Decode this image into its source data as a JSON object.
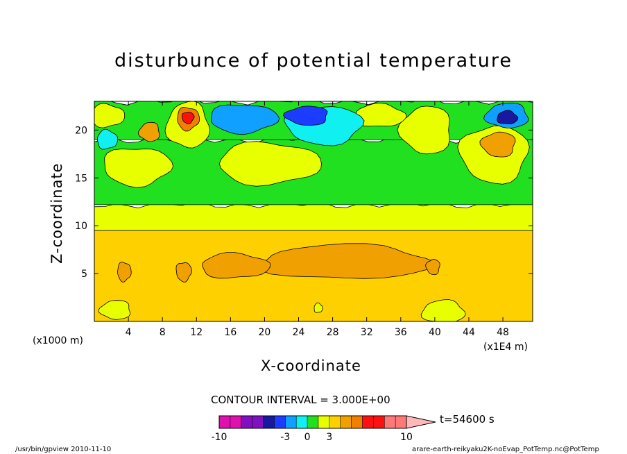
{
  "chart_data": {
    "type": "heatmap",
    "title": "disturbunce of potential temperature",
    "xlabel": "X-coordinate",
    "ylabel": "Z-coordinate",
    "x_unit": "(x1000 m)",
    "x_multiplier": "(x1E4 m)",
    "xlim": [
      0,
      51.5
    ],
    "ylim": [
      0,
      23
    ],
    "x_ticks": [
      4,
      8,
      12,
      16,
      20,
      24,
      28,
      32,
      36,
      40,
      44,
      48
    ],
    "y_ticks": [
      5,
      10,
      15,
      20
    ],
    "contour_interval_text": "CONTOUR INTERVAL = 3.000E+00",
    "time_label": "t=54600 s",
    "colorbar": {
      "colors": [
        "#e010b0",
        "#e010b0",
        "#8010c0",
        "#8010c0",
        "#1818a0",
        "#1c3cff",
        "#10a0ff",
        "#10f0f0",
        "#20e020",
        "#e8ff00",
        "#ffd000",
        "#f0a000",
        "#f08000",
        "#ff1010",
        "#ff1010",
        "#ff7878",
        "#ff7878",
        "#ffb8b8"
      ],
      "tick_labels": [
        "-10",
        "-3",
        "0",
        "3",
        "10"
      ]
    },
    "layers": [
      {
        "z_from": 0,
        "z_to": 9.5,
        "color": "#ffd000"
      },
      {
        "z_from": 9.5,
        "z_to": 12.2,
        "color": "#e8ff00"
      },
      {
        "z_from": 12.2,
        "z_to": 19,
        "color": "#20e020"
      },
      {
        "z_from": 19,
        "z_to": 23,
        "color": "#20e020"
      }
    ],
    "blobs": [
      {
        "x": 29.5,
        "z": 6.2,
        "rx": 10,
        "rz": 1.8,
        "color": "#f0a000"
      },
      {
        "x": 16.5,
        "z": 5.8,
        "rx": 4,
        "rz": 1.3,
        "color": "#f0a000"
      },
      {
        "x": 3.5,
        "z": 5.2,
        "rx": 0.8,
        "rz": 1.0,
        "color": "#f0a000"
      },
      {
        "x": 10.5,
        "z": 5.2,
        "rx": 0.9,
        "rz": 1.0,
        "color": "#f0a000"
      },
      {
        "x": 39.8,
        "z": 5.7,
        "rx": 0.8,
        "rz": 0.8,
        "color": "#f0a000"
      },
      {
        "x": 2.5,
        "z": 1.2,
        "rx": 1.8,
        "rz": 1.0,
        "color": "#e8ff00"
      },
      {
        "x": 41,
        "z": 1.0,
        "rx": 2.5,
        "rz": 1.2,
        "color": "#e8ff00"
      },
      {
        "x": 26.3,
        "z": 1.4,
        "rx": 0.5,
        "rz": 0.5,
        "color": "#e8ff00"
      },
      {
        "x": 20.5,
        "z": 16.5,
        "rx": 6,
        "rz": 2.2,
        "color": "#e8ff00"
      },
      {
        "x": 5,
        "z": 16.2,
        "rx": 4,
        "rz": 2.0,
        "color": "#e8ff00"
      },
      {
        "x": 47,
        "z": 17.5,
        "rx": 4,
        "rz": 3.0,
        "color": "#e8ff00"
      },
      {
        "x": 39,
        "z": 20,
        "rx": 3,
        "rz": 2.5,
        "color": "#e8ff00"
      },
      {
        "x": 11,
        "z": 20.5,
        "rx": 2.5,
        "rz": 2.4,
        "color": "#e8ff00"
      },
      {
        "x": 33.5,
        "z": 21.5,
        "rx": 3,
        "rz": 1.2,
        "color": "#e8ff00"
      },
      {
        "x": 1.5,
        "z": 21.5,
        "rx": 2,
        "rz": 1.2,
        "color": "#e8ff00"
      },
      {
        "x": 17.5,
        "z": 21.2,
        "rx": 4,
        "rz": 1.5,
        "color": "#10a0ff"
      },
      {
        "x": 27,
        "z": 20.5,
        "rx": 4.5,
        "rz": 2.0,
        "color": "#10f0f0"
      },
      {
        "x": 25,
        "z": 21.5,
        "rx": 2.5,
        "rz": 1.0,
        "color": "#1c3cff"
      },
      {
        "x": 48.5,
        "z": 21.5,
        "rx": 2.5,
        "rz": 1.3,
        "color": "#10a0ff"
      },
      {
        "x": 48.5,
        "z": 21.3,
        "rx": 1.2,
        "rz": 0.7,
        "color": "#1818a0"
      },
      {
        "x": 1.5,
        "z": 19,
        "rx": 1.2,
        "rz": 1.0,
        "color": "#10f0f0"
      },
      {
        "x": 11,
        "z": 21.2,
        "rx": 1.3,
        "rz": 1.2,
        "color": "#f08000"
      },
      {
        "x": 11,
        "z": 21.3,
        "rx": 0.7,
        "rz": 0.6,
        "color": "#ff1010"
      },
      {
        "x": 47.5,
        "z": 18.5,
        "rx": 2,
        "rz": 1.3,
        "color": "#f0a000"
      },
      {
        "x": 6.5,
        "z": 19.8,
        "rx": 1.2,
        "rz": 1.0,
        "color": "#f0a000"
      }
    ]
  },
  "footer": {
    "left": "/usr/bin/gpview  2010-11-10",
    "right": "arare-earth-reikyaku2K-noEvap_PotTemp.nc@PotTemp"
  }
}
